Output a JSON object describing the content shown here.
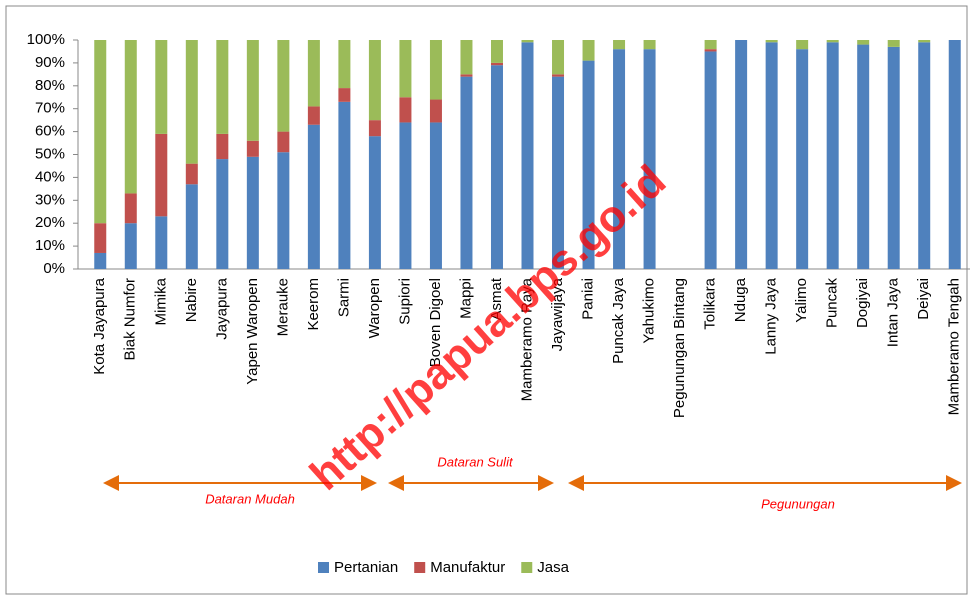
{
  "chart_data": {
    "type": "stacked_bar_100",
    "categories": [
      "Kota Jayapura",
      "Biak Numfor",
      "Mimika",
      "Nabire",
      "Jayapura",
      "Yapen Waropen",
      "Merauke",
      "Keerom",
      "Sarmi",
      "Waropen",
      "Supiori",
      "Boven Digoel",
      "Mappi",
      "Asmat",
      "Mamberamo Raya",
      "Jayawijaya",
      "Paniai",
      "Puncak Jaya",
      "Yahukimo",
      "Pegunungan Bintang",
      "Tolikara",
      "Nduga",
      "Lanny Jaya",
      "Yalimo",
      "Puncak",
      "Dogiyai",
      "Intan Jaya",
      "Deiyai",
      "Mamberamo Tengah"
    ],
    "series": [
      {
        "name": "Pertanian",
        "color": "#4f81bd",
        "values": [
          7,
          20,
          23,
          37,
          48,
          49,
          51,
          63,
          73,
          58,
          64,
          64,
          84,
          89,
          99,
          84,
          91,
          96,
          96,
          null,
          95,
          100,
          99,
          96,
          99,
          98,
          97,
          99,
          100
        ]
      },
      {
        "name": "Manufaktur",
        "color": "#c0504d",
        "values": [
          13,
          13,
          36,
          9,
          11,
          7,
          9,
          8,
          6,
          7,
          11,
          10,
          1,
          1,
          0,
          1,
          0,
          0,
          0,
          null,
          1,
          0,
          0,
          0,
          0,
          0,
          0,
          0,
          0
        ]
      },
      {
        "name": "Jasa",
        "color": "#9bbb59",
        "values": [
          80,
          67,
          41,
          54,
          41,
          44,
          40,
          29,
          21,
          35,
          25,
          26,
          15,
          10,
          1,
          15,
          9,
          4,
          4,
          null,
          4,
          0,
          1,
          4,
          1,
          2,
          3,
          1,
          0
        ]
      }
    ],
    "ylim": [
      0,
      100
    ],
    "yticks": [
      {
        "value": 0,
        "label": "0%"
      },
      {
        "value": 10,
        "label": "10%"
      },
      {
        "value": 20,
        "label": "20%"
      },
      {
        "value": 30,
        "label": "30%"
      },
      {
        "value": 40,
        "label": "40%"
      },
      {
        "value": 50,
        "label": "50%"
      },
      {
        "value": 60,
        "label": "60%"
      },
      {
        "value": 70,
        "label": "70%"
      },
      {
        "value": 80,
        "label": "80%"
      },
      {
        "value": 90,
        "label": "90%"
      },
      {
        "value": 100,
        "label": "100%"
      }
    ],
    "grid": false,
    "legend": "bottom",
    "annotations": [
      "Dataran Mudah",
      "Dataran Sulit",
      "Pegunungan"
    ],
    "watermark": "http://papua.bps.go.id"
  }
}
